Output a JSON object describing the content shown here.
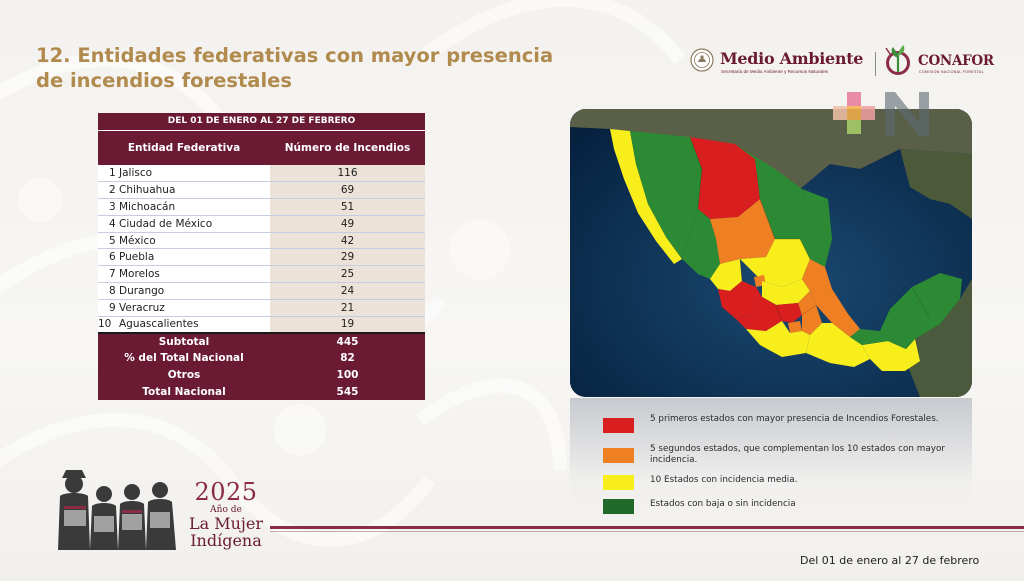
{
  "slide": {
    "title": "12. Entidades federativas con mayor presencia de incendios forestales"
  },
  "header": {
    "agency_name": "Medio Ambiente",
    "agency_subtitle": "Secretaría de Medio Ambiente y Recursos Naturales",
    "partner_name": "CONAFOR",
    "partner_subtitle": "COMISIÓN NACIONAL FORESTAL"
  },
  "table": {
    "period": "DEL 01 DE ENERO AL 27 DE FEBRERO",
    "col_entity": "Entidad Federativa",
    "col_count": "Número de Incendios",
    "rows": [
      {
        "rank": "1",
        "name": "Jalisco",
        "count": "116"
      },
      {
        "rank": "2",
        "name": "Chihuahua",
        "count": "69"
      },
      {
        "rank": "3",
        "name": "Michoacán",
        "count": "51"
      },
      {
        "rank": "4",
        "name": "Ciudad de México",
        "count": "49"
      },
      {
        "rank": "5",
        "name": "México",
        "count": "42"
      },
      {
        "rank": "6",
        "name": "Puebla",
        "count": "29"
      },
      {
        "rank": "7",
        "name": "Morelos",
        "count": "25"
      },
      {
        "rank": "8",
        "name": "Durango",
        "count": "24"
      },
      {
        "rank": "9",
        "name": "Veracruz",
        "count": "21"
      },
      {
        "rank": "10",
        "name": "Aguascalientes",
        "count": "19"
      }
    ],
    "summary": [
      {
        "label": "Subtotal",
        "value": "445"
      },
      {
        "label": "% del Total Nacional",
        "value": "82"
      },
      {
        "label": "Otros",
        "value": "100"
      },
      {
        "label": "Total Nacional",
        "value": "545"
      }
    ]
  },
  "legend": [
    {
      "color": "#d81e1e",
      "text": "5 primeros estados con mayor presencia de Incendios Forestales."
    },
    {
      "color": "#ef7f23",
      "text": "5 segundos estados, que complementan los 10 estados con mayor incidencia."
    },
    {
      "color": "#f7ee1c",
      "text": "10 Estados con incidencia media."
    },
    {
      "color": "#1f6a2a",
      "text": "Estados con baja o sin incidencia"
    }
  ],
  "colors": {
    "guinda": "#6b1a33",
    "gold": "#b18a4d",
    "high": "#d81e1e",
    "second": "#ef7f23",
    "medium": "#f7ee1c",
    "low": "#2c8a34"
  },
  "footer": {
    "date_range": "Del 01 de enero al 27 de febrero",
    "year": "2025",
    "year_label": "Año de",
    "theme_line1": "La Mujer",
    "theme_line2": "Indígena"
  }
}
